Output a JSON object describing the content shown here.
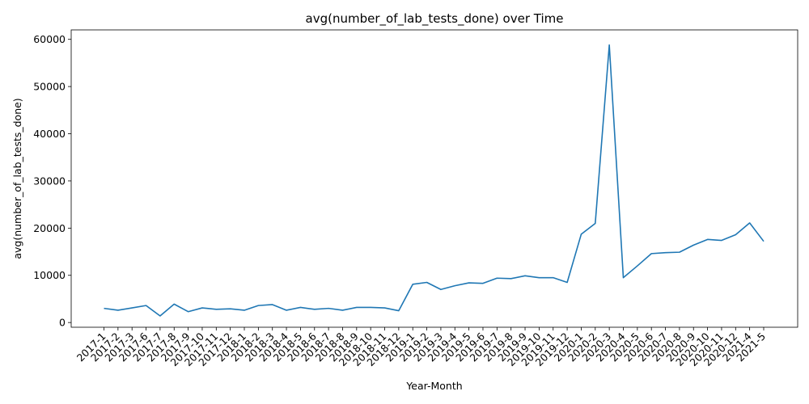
{
  "chart_data": {
    "type": "line",
    "title": "avg(number_of_lab_tests_done) over Time",
    "xlabel": "Year-Month",
    "ylabel": "avg(number_of_lab_tests_done)",
    "ylim": [
      -1000,
      62000
    ],
    "yticks": [
      0,
      10000,
      20000,
      30000,
      40000,
      50000,
      60000
    ],
    "grid": false,
    "color": "#1f77b4",
    "categories": [
      "2017-1",
      "2017-2",
      "2017-3",
      "2017-6",
      "2017-7",
      "2017-8",
      "2017-9",
      "2017-10",
      "2017-11",
      "2017-12",
      "2018-1",
      "2018-2",
      "2018-3",
      "2018-4",
      "2018-5",
      "2018-6",
      "2018-7",
      "2018-8",
      "2018-9",
      "2018-10",
      "2018-11",
      "2018-12",
      "2019-1",
      "2019-2",
      "2019-3",
      "2019-4",
      "2019-5",
      "2019-6",
      "2019-7",
      "2019-8",
      "2019-9",
      "2019-10",
      "2019-11",
      "2019-12",
      "2020-1",
      "2020-2",
      "2020-3",
      "2020-4",
      "2020-5",
      "2020-6",
      "2020-7",
      "2020-8",
      "2020-9",
      "2020-10",
      "2020-11",
      "2020-12",
      "2021-4",
      "2021-5"
    ],
    "values": [
      3000,
      2600,
      3100,
      3600,
      1400,
      3900,
      2300,
      3100,
      2800,
      2900,
      2600,
      3600,
      3800,
      2600,
      3200,
      2800,
      3000,
      2600,
      3200,
      3200,
      3100,
      2500,
      8100,
      8500,
      7000,
      7800,
      8400,
      8300,
      9400,
      9300,
      9900,
      9500,
      9500,
      8500,
      18700,
      21000,
      58800,
      9500,
      12000,
      14600,
      14800,
      14900,
      16400,
      17600,
      17400,
      18600,
      21100,
      17200
    ]
  }
}
